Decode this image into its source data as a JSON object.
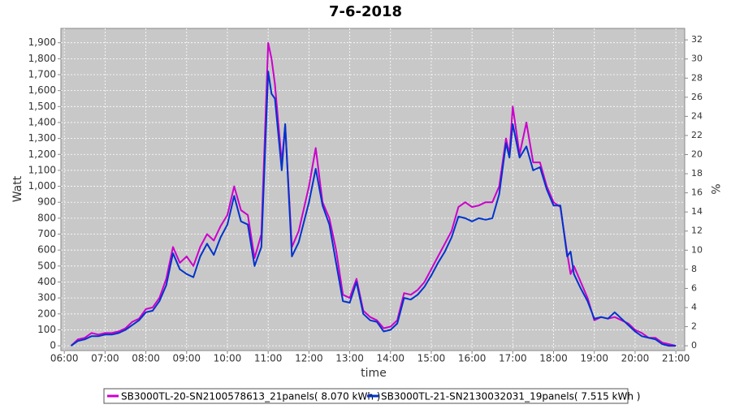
{
  "chart_data": {
    "type": "line",
    "title": "7-6-2018",
    "x_label": "time",
    "y_label": "Watt",
    "y2_label": "%",
    "x": [
      "06:10",
      "06:20",
      "06:30",
      "06:40",
      "06:50",
      "07:00",
      "07:10",
      "07:20",
      "07:30",
      "07:40",
      "07:50",
      "08:00",
      "08:10",
      "08:20",
      "08:30",
      "08:40",
      "08:50",
      "09:00",
      "09:10",
      "09:20",
      "09:30",
      "09:40",
      "09:50",
      "10:00",
      "10:10",
      "10:20",
      "10:30",
      "10:40",
      "10:50",
      "11:00",
      "11:05",
      "11:10",
      "11:20",
      "11:25",
      "11:35",
      "11:45",
      "12:00",
      "12:10",
      "12:20",
      "12:30",
      "12:40",
      "12:50",
      "13:00",
      "13:10",
      "13:20",
      "13:30",
      "13:40",
      "13:50",
      "14:00",
      "14:10",
      "14:20",
      "14:30",
      "14:40",
      "14:50",
      "15:00",
      "15:10",
      "15:20",
      "15:30",
      "15:40",
      "15:50",
      "16:00",
      "16:10",
      "16:20",
      "16:30",
      "16:40",
      "16:50",
      "16:55",
      "17:00",
      "17:10",
      "17:20",
      "17:30",
      "17:40",
      "17:50",
      "18:00",
      "18:10",
      "18:20",
      "18:25",
      "18:30",
      "18:40",
      "18:50",
      "19:00",
      "19:10",
      "19:20",
      "19:30",
      "19:40",
      "19:50",
      "20:00",
      "20:10",
      "20:20",
      "20:30",
      "20:40",
      "20:50",
      "21:00"
    ],
    "series": [
      {
        "name": "SB3000TL-20-SN2100578613_21panels( 8.070 kWh )",
        "color": "#cc00cc",
        "values": [
          0,
          40,
          50,
          80,
          70,
          80,
          80,
          90,
          110,
          150,
          170,
          230,
          240,
          300,
          420,
          620,
          520,
          560,
          500,
          620,
          700,
          660,
          750,
          820,
          1000,
          850,
          820,
          550,
          700,
          1900,
          1800,
          1640,
          1150,
          1380,
          620,
          720,
          1000,
          1240,
          900,
          800,
          600,
          320,
          300,
          420,
          220,
          180,
          160,
          110,
          120,
          160,
          330,
          320,
          350,
          400,
          480,
          560,
          640,
          720,
          870,
          900,
          870,
          880,
          900,
          900,
          1000,
          1300,
          1200,
          1500,
          1200,
          1400,
          1150,
          1150,
          1000,
          900,
          870,
          580,
          450,
          500,
          400,
          300,
          160,
          180,
          170,
          180,
          160,
          140,
          100,
          80,
          50,
          50,
          20,
          10,
          0
        ]
      },
      {
        "name": "SB3000TL-21-SN2130032031_19panels( 7.515 kWh )",
        "color": "#0033cc",
        "values": [
          0,
          30,
          40,
          60,
          60,
          70,
          70,
          80,
          100,
          130,
          160,
          210,
          220,
          280,
          380,
          580,
          480,
          450,
          430,
          560,
          640,
          570,
          680,
          760,
          940,
          780,
          760,
          500,
          620,
          1720,
          1580,
          1550,
          1100,
          1390,
          560,
          650,
          900,
          1110,
          880,
          760,
          520,
          280,
          270,
          400,
          200,
          160,
          150,
          90,
          100,
          140,
          300,
          290,
          320,
          370,
          440,
          520,
          590,
          680,
          810,
          800,
          780,
          800,
          790,
          800,
          950,
          1270,
          1180,
          1390,
          1180,
          1250,
          1100,
          1120,
          980,
          880,
          880,
          560,
          590,
          450,
          360,
          280,
          170,
          180,
          170,
          210,
          170,
          130,
          90,
          60,
          50,
          40,
          10,
          0,
          0
        ]
      }
    ],
    "xlim": [
      "05:55",
      "21:13"
    ],
    "xticks": [
      "06:00",
      "07:00",
      "08:00",
      "09:00",
      "10:00",
      "11:00",
      "12:00",
      "13:00",
      "14:00",
      "15:00",
      "16:00",
      "17:00",
      "18:00",
      "19:00",
      "20:00",
      "21:00"
    ],
    "ylim": [
      -30,
      1990
    ],
    "yticks": [
      0,
      100,
      200,
      300,
      400,
      500,
      600,
      700,
      800,
      900,
      {
        "value": 1000,
        "label": "1,000"
      },
      {
        "value": 1100,
        "label": "1,100"
      },
      {
        "value": 1200,
        "label": "1,200"
      },
      {
        "value": 1300,
        "label": "1,300"
      },
      {
        "value": 1400,
        "label": "1,400"
      },
      {
        "value": 1500,
        "label": "1,500"
      },
      {
        "value": 1600,
        "label": "1,600"
      },
      {
        "value": 1700,
        "label": "1,700"
      },
      {
        "value": 1800,
        "label": "1,800"
      },
      {
        "value": 1900,
        "label": "1,900"
      }
    ],
    "y2lim": [
      -0.5,
      33.2
    ],
    "y2ticks": [
      0,
      2,
      4,
      6,
      8,
      10,
      12,
      14,
      16,
      18,
      20,
      22,
      24,
      26,
      28,
      30,
      32
    ],
    "grid": true,
    "legend": "bottom"
  }
}
